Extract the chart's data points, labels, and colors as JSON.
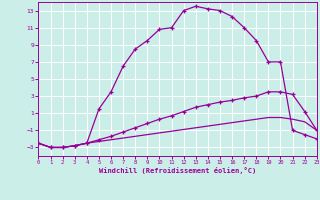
{
  "xlabel": "Windchill (Refroidissement éolien,°C)",
  "bg_color": "#cceee8",
  "line_color": "#990099",
  "grid_color": "#ffffff",
  "x_ticks": [
    0,
    1,
    2,
    3,
    4,
    5,
    6,
    7,
    8,
    9,
    10,
    11,
    12,
    13,
    14,
    15,
    16,
    17,
    18,
    19,
    20,
    21,
    22,
    23
  ],
  "y_ticks": [
    -3,
    -1,
    1,
    3,
    5,
    7,
    9,
    11,
    13
  ],
  "xlim": [
    0,
    23
  ],
  "ylim": [
    -4,
    14
  ],
  "series1_x": [
    0,
    1,
    2,
    3,
    4,
    5,
    6,
    7,
    8,
    9,
    10,
    11,
    12,
    13,
    14,
    15,
    16,
    17,
    18,
    19,
    20,
    21,
    22,
    23
  ],
  "series1_y": [
    -2.5,
    -3,
    -3,
    -2.8,
    -2.5,
    1.5,
    3.5,
    6.5,
    8.5,
    9.5,
    10.8,
    11.0,
    13.0,
    13.5,
    13.2,
    13.0,
    12.3,
    11.0,
    9.5,
    7.0,
    7.0,
    -1.0,
    -1.5,
    -2.0
  ],
  "series2_x": [
    0,
    1,
    2,
    3,
    4,
    5,
    6,
    7,
    8,
    9,
    10,
    11,
    12,
    13,
    14,
    15,
    16,
    17,
    18,
    19,
    20,
    21,
    22,
    23
  ],
  "series2_y": [
    -2.5,
    -3,
    -3,
    -2.8,
    -2.5,
    -2.1,
    -1.7,
    -1.2,
    -0.7,
    -0.2,
    0.3,
    0.7,
    1.2,
    1.7,
    2.0,
    2.3,
    2.5,
    2.8,
    3.0,
    3.5,
    3.5,
    3.2,
    1.2,
    -1.0
  ],
  "series3_x": [
    0,
    1,
    2,
    3,
    4,
    5,
    6,
    7,
    8,
    9,
    10,
    11,
    12,
    13,
    14,
    15,
    16,
    17,
    18,
    19,
    20,
    21,
    22,
    23
  ],
  "series3_y": [
    -2.5,
    -3,
    -3,
    -2.8,
    -2.5,
    -2.3,
    -2.1,
    -1.9,
    -1.7,
    -1.5,
    -1.3,
    -1.1,
    -0.9,
    -0.7,
    -0.5,
    -0.3,
    -0.1,
    0.1,
    0.3,
    0.5,
    0.5,
    0.3,
    0.0,
    -1.0
  ]
}
